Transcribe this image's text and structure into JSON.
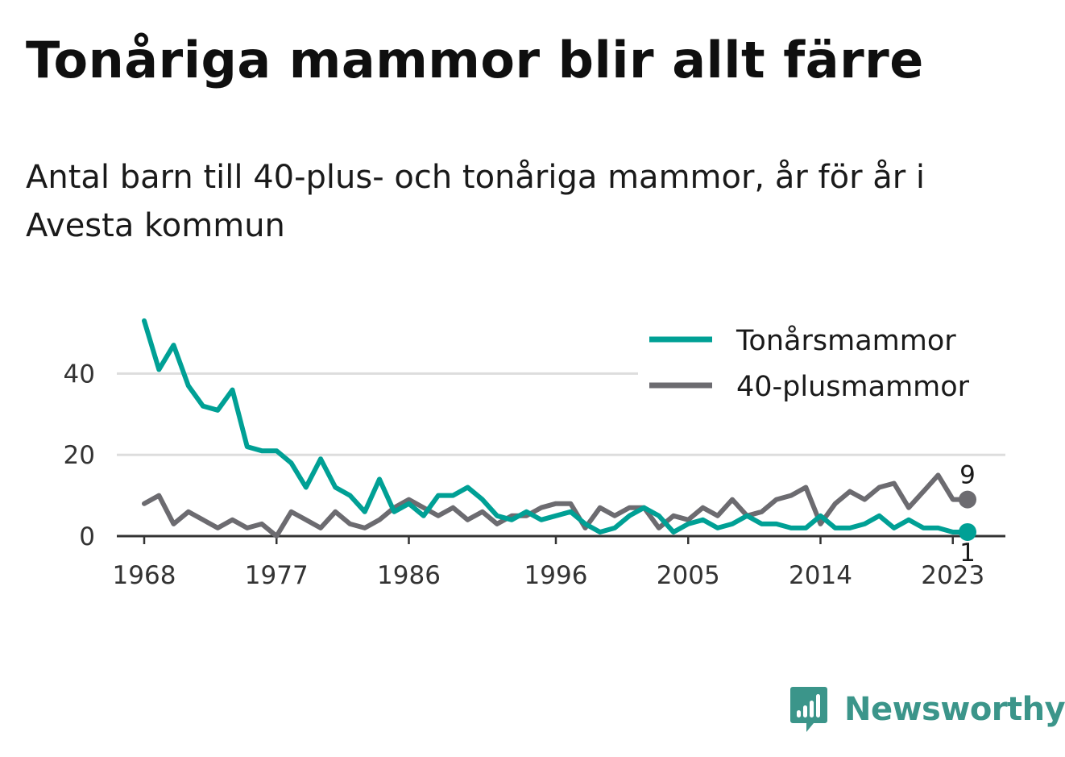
{
  "header": {
    "title": "Tonåriga mammor blir allt färre",
    "subtitle": "Antal barn till 40-plus- och tonåriga mammor, år för år i Avesta kommun"
  },
  "brand": {
    "name": "Newsworthy",
    "logo_icon": "bar-chart-badge-icon",
    "color": "#3b958a"
  },
  "chart_data": {
    "type": "line",
    "title": "Tonåriga mammor blir allt färre",
    "subtitle": "Antal barn till 40-plus- och tonåriga mammor, år för år i Avesta kommun",
    "xlabel": "",
    "ylabel": "",
    "xlim": [
      1967,
      2027
    ],
    "ylim": [
      0,
      55
    ],
    "x_ticks": [
      1968,
      1977,
      1986,
      1996,
      2005,
      2014,
      2023
    ],
    "y_ticks": [
      0,
      20,
      40
    ],
    "grid": "horizontal",
    "legend_position": "top-right",
    "x": [
      1968,
      1969,
      1970,
      1971,
      1972,
      1973,
      1974,
      1975,
      1976,
      1977,
      1978,
      1979,
      1980,
      1981,
      1982,
      1983,
      1984,
      1985,
      1986,
      1987,
      1988,
      1989,
      1990,
      1991,
      1992,
      1993,
      1994,
      1995,
      1996,
      1997,
      1998,
      1999,
      2000,
      2001,
      2002,
      2003,
      2004,
      2005,
      2006,
      2007,
      2008,
      2009,
      2010,
      2011,
      2012,
      2013,
      2014,
      2015,
      2016,
      2017,
      2018,
      2019,
      2020,
      2021,
      2022,
      2023,
      2024
    ],
    "series": [
      {
        "name": "Tonårsmammor",
        "color": "#00a095",
        "values": [
          53,
          41,
          47,
          37,
          32,
          31,
          36,
          22,
          21,
          21,
          18,
          12,
          19,
          12,
          10,
          6,
          14,
          6,
          8,
          5,
          10,
          10,
          12,
          9,
          5,
          4,
          6,
          4,
          5,
          6,
          3,
          1,
          2,
          5,
          7,
          5,
          1,
          3,
          4,
          2,
          3,
          5,
          3,
          3,
          2,
          2,
          5,
          2,
          2,
          3,
          5,
          2,
          4,
          2,
          2,
          1,
          1
        ],
        "end_label": "1"
      },
      {
        "name": "40-plusmammor",
        "color": "#6c6b70",
        "values": [
          8,
          10,
          3,
          6,
          4,
          2,
          4,
          2,
          3,
          0,
          6,
          4,
          2,
          6,
          3,
          2,
          4,
          7,
          9,
          7,
          5,
          7,
          4,
          6,
          3,
          5,
          5,
          7,
          8,
          8,
          2,
          7,
          5,
          7,
          7,
          2,
          5,
          4,
          7,
          5,
          9,
          5,
          6,
          9,
          10,
          12,
          3,
          8,
          11,
          9,
          12,
          13,
          7,
          11,
          15,
          9,
          9
        ],
        "end_label": "9"
      }
    ]
  }
}
